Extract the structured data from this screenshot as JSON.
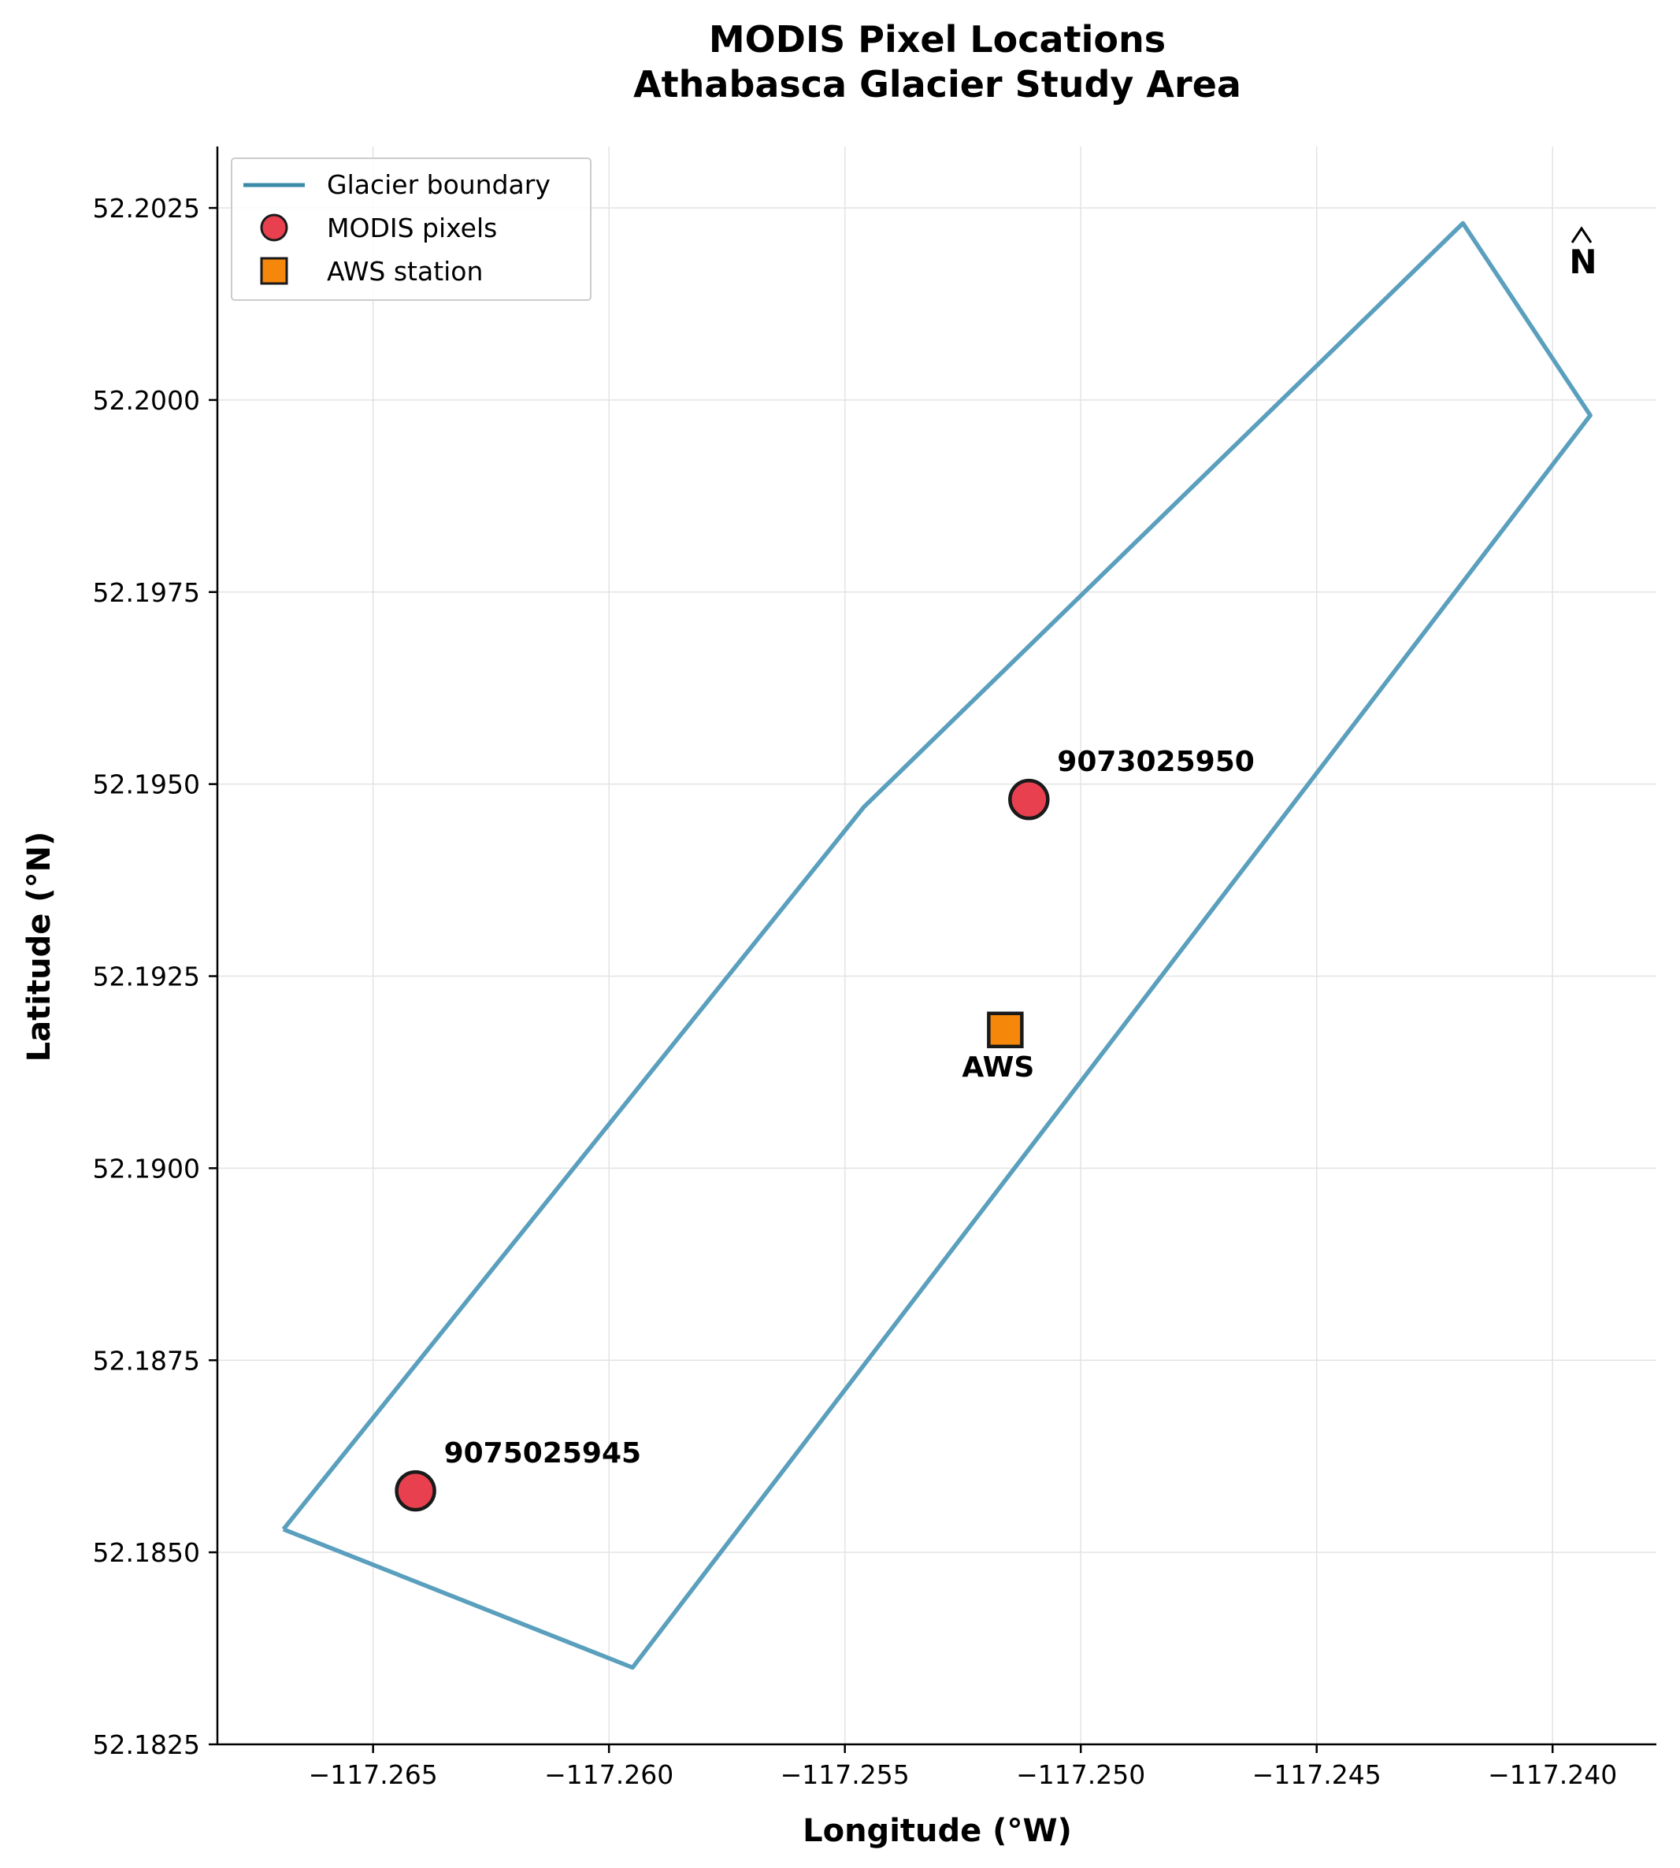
{
  "chart_data": {
    "type": "scatter",
    "title_line1": "MODIS Pixel Locations",
    "title_line2": "Athabasca Glacier Study Area",
    "xlabel": "Longitude (°W)",
    "ylabel": "Latitude (°N)",
    "xlim": [
      -117.2683,
      -117.2378
    ],
    "ylim": [
      52.1825,
      52.2033
    ],
    "x_ticks": [
      -117.265,
      -117.26,
      -117.255,
      -117.25,
      -117.245,
      -117.24
    ],
    "x_tick_labels": [
      "−117.265",
      "−117.260",
      "−117.255",
      "−117.250",
      "−117.245",
      "−117.240"
    ],
    "y_ticks": [
      52.1825,
      52.185,
      52.1875,
      52.19,
      52.1925,
      52.195,
      52.1975,
      52.2,
      52.2025
    ],
    "y_tick_labels": [
      "52.1825",
      "52.1850",
      "52.1875",
      "52.1900",
      "52.1925",
      "52.1950",
      "52.1975",
      "52.2000",
      "52.2025"
    ],
    "grid": true,
    "legend_position": "top-left",
    "legend": [
      {
        "label": "Glacier boundary",
        "marker": "line"
      },
      {
        "label": "MODIS pixels",
        "marker": "circle"
      },
      {
        "label": "AWS station",
        "marker": "square"
      }
    ],
    "glacier_boundary": {
      "lon": [
        -117.2669,
        -117.2595,
        -117.2392,
        -117.2419,
        -117.2546,
        -117.2669
      ],
      "lat": [
        52.1853,
        52.1835,
        52.1998,
        52.2023,
        52.1947,
        52.1853
      ]
    },
    "modis_pixels": [
      {
        "id": "9075025945",
        "lon": -117.2641,
        "lat": 52.1858
      },
      {
        "id": "9073025950",
        "lon": -117.2511,
        "lat": 52.1948
      }
    ],
    "aws_station": {
      "label": "AWS",
      "lon": -117.2516,
      "lat": 52.1918
    },
    "north_arrow_label": "N",
    "colors": {
      "boundary": "#5a9fbd",
      "boundary_legend": "#3a8aa8",
      "modis": "#e8404f",
      "aws": "#f5870a",
      "marker_edge": "#1a1a1a"
    }
  }
}
